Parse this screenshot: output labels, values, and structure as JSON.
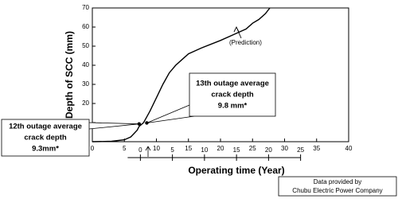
{
  "chart_data": {
    "type": "line",
    "y_label": "Depth of SCC (mm)",
    "x_label": "Operating time (Year)",
    "x": [
      0,
      3,
      5,
      6,
      7,
      7.3,
      8,
      8.5,
      9,
      10,
      11,
      12,
      13,
      14,
      15,
      17,
      20,
      22,
      24,
      25,
      26,
      27,
      27.7
    ],
    "values": [
      0,
      0.2,
      1,
      2.5,
      6,
      8,
      10,
      13,
      16,
      23,
      30,
      36,
      40,
      43,
      46,
      49,
      53,
      56,
      59,
      62,
      64,
      67,
      70
    ],
    "color": "#000000",
    "xlim": [
      0,
      40
    ],
    "xticks": [
      0,
      5,
      10,
      15,
      20,
      25,
      30,
      35,
      40
    ],
    "ylim": [
      0,
      70
    ],
    "yticks": [
      0,
      10,
      20,
      30,
      40,
      50,
      60,
      70
    ],
    "x2lim": [
      -7.5,
      32.5
    ],
    "x2ticks": [
      0,
      5,
      10,
      15,
      20,
      25
    ],
    "prediction_label": "(Prediction)",
    "annotations": [
      {
        "text": [
          "12th outage average",
          "crack depth",
          "9.3mm*"
        ],
        "x": 7.3,
        "y": 9.3
      },
      {
        "text": [
          "13th outage average",
          "crack depth",
          "9.8 mm*"
        ],
        "x": 8.5,
        "y": 9.8
      }
    ],
    "note": [
      "Data provided by",
      "Chubu Electric Power Company"
    ]
  }
}
